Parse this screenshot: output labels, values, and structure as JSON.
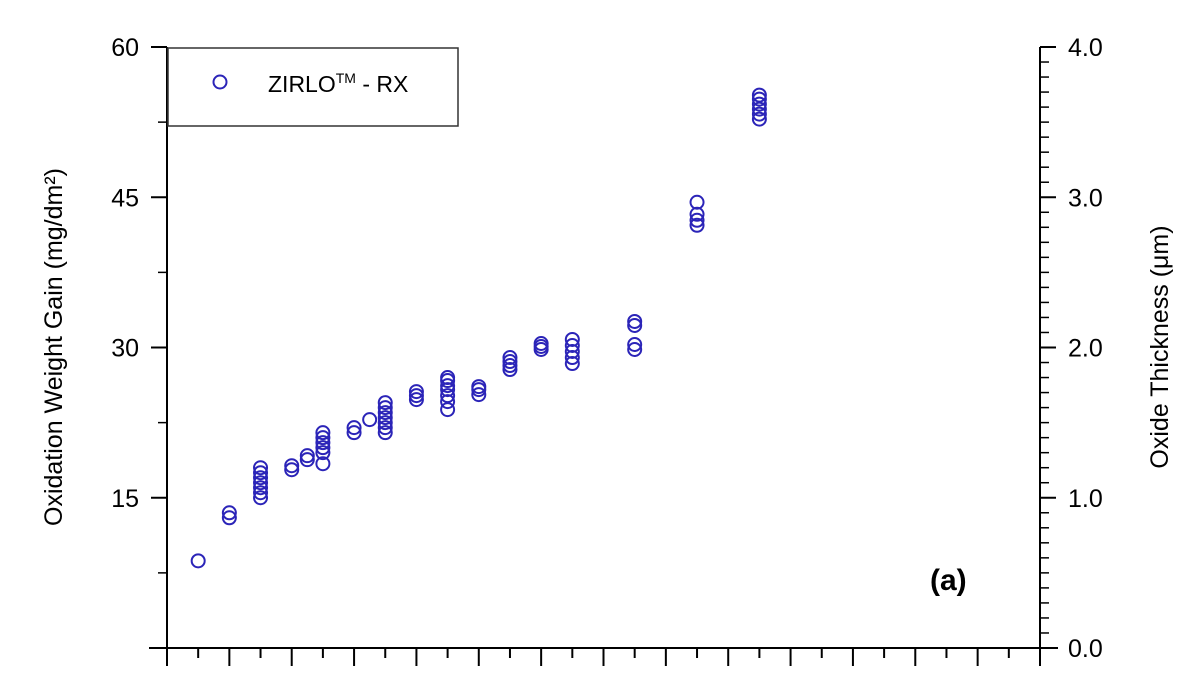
{
  "chart_data": {
    "type": "scatter",
    "panel_label": "(a)",
    "y_axis_left": {
      "label": "Oxidation Weight Gain (mg/dm²)",
      "ylim": [
        0,
        60
      ],
      "ticks": [
        "15",
        "30",
        "45",
        "60"
      ]
    },
    "y_axis_right": {
      "label": "Oxide Thickness (μm)",
      "ylim": [
        0.0,
        4.0
      ],
      "ticks": [
        "0.0",
        "1.0",
        "2.0",
        "3.0",
        "4.0"
      ]
    },
    "x_axis": {
      "label": "",
      "ticks_labeled": false,
      "xlim": [
        0,
        28
      ]
    },
    "grid": false,
    "legend": {
      "placement": "top-left",
      "entry": {
        "name": "ZIRLO",
        "superscript": "TM",
        "suffix": " - RX"
      }
    },
    "marker": {
      "shape": "open-circle",
      "color": "#2b24b8"
    },
    "series": [
      {
        "name": "ZIRLO™ - RX",
        "points": [
          [
            1,
            8.7
          ],
          [
            2,
            13.0
          ],
          [
            2,
            13.5
          ],
          [
            3,
            15.0
          ],
          [
            3,
            15.5
          ],
          [
            3,
            16.0
          ],
          [
            3,
            16.5
          ],
          [
            3,
            17.0
          ],
          [
            3,
            17.5
          ],
          [
            3,
            18.0
          ],
          [
            4,
            17.8
          ],
          [
            4,
            18.2
          ],
          [
            4.5,
            18.8
          ],
          [
            4.5,
            19.2
          ],
          [
            5,
            18.4
          ],
          [
            5,
            19.5
          ],
          [
            5,
            20.0
          ],
          [
            5,
            20.5
          ],
          [
            5,
            21.0
          ],
          [
            5,
            21.5
          ],
          [
            6,
            21.5
          ],
          [
            6,
            22.0
          ],
          [
            6.5,
            22.8
          ],
          [
            7,
            21.5
          ],
          [
            7,
            22.0
          ],
          [
            7,
            22.5
          ],
          [
            7,
            23.0
          ],
          [
            7,
            23.5
          ],
          [
            7,
            24.0
          ],
          [
            7,
            24.5
          ],
          [
            8,
            24.8
          ],
          [
            8,
            25.2
          ],
          [
            8,
            25.6
          ],
          [
            9,
            23.8
          ],
          [
            9,
            24.6
          ],
          [
            9,
            25.2
          ],
          [
            9,
            25.8
          ],
          [
            9,
            26.2
          ],
          [
            9,
            26.7
          ],
          [
            9,
            27.0
          ],
          [
            10,
            25.3
          ],
          [
            10,
            25.8
          ],
          [
            10,
            26.1
          ],
          [
            11,
            27.8
          ],
          [
            11,
            28.2
          ],
          [
            11,
            28.6
          ],
          [
            11,
            29.0
          ],
          [
            12,
            29.8
          ],
          [
            12,
            30.1
          ],
          [
            12,
            30.4
          ],
          [
            13,
            28.4
          ],
          [
            13,
            29.0
          ],
          [
            13,
            29.6
          ],
          [
            13,
            30.2
          ],
          [
            13,
            30.8
          ],
          [
            15,
            29.8
          ],
          [
            15,
            30.3
          ],
          [
            15,
            32.2
          ],
          [
            15,
            32.6
          ],
          [
            17,
            42.2
          ],
          [
            17,
            42.7
          ],
          [
            17,
            43.3
          ],
          [
            17,
            44.5
          ],
          [
            19,
            52.8
          ],
          [
            19,
            53.3
          ],
          [
            19,
            53.8
          ],
          [
            19,
            54.3
          ],
          [
            19,
            54.8
          ],
          [
            19,
            55.2
          ]
        ]
      }
    ]
  }
}
